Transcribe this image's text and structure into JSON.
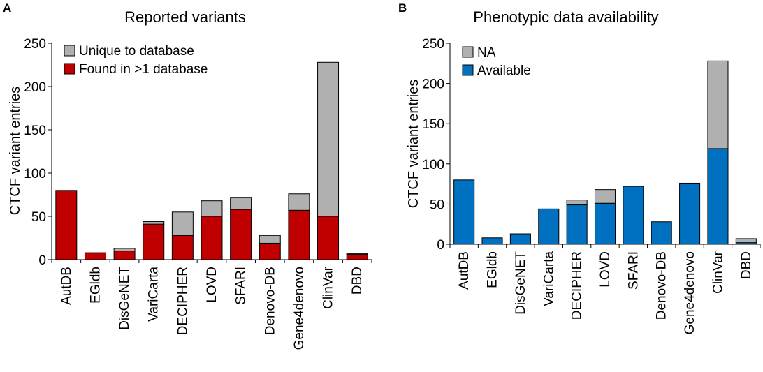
{
  "chart_data": [
    {
      "panel": "A",
      "type": "bar",
      "stacked": true,
      "title": "Reported variants",
      "xlabel": "",
      "ylabel": "CTCF variant entries",
      "ylim": [
        0,
        250
      ],
      "yticks": [
        0,
        50,
        100,
        150,
        200,
        250
      ],
      "categories": [
        "AutDB",
        "EGldb",
        "DisGeNET",
        "VariCarta",
        "DECIPHER",
        "LOVD",
        "SFARI",
        "Denovo-DB",
        "Gene4denovo",
        "ClinVar",
        "DBD"
      ],
      "legend_position": "top-left",
      "series": [
        {
          "name": "Found in >1 database",
          "color": "#c00000",
          "values": [
            80,
            8,
            10,
            41,
            28,
            50,
            58,
            19,
            57,
            50,
            6
          ]
        },
        {
          "name": "Unique to database",
          "color": "#b0b0b0",
          "values": [
            0,
            0,
            3,
            3,
            27,
            18,
            14,
            9,
            19,
            178,
            1
          ]
        }
      ],
      "legend_order": [
        "Unique to database",
        "Found in >1 database"
      ]
    },
    {
      "panel": "B",
      "type": "bar",
      "stacked": true,
      "title": "Phenotypic data availability",
      "xlabel": "",
      "ylabel": "CTCF variant entries",
      "ylim": [
        0,
        250
      ],
      "yticks": [
        0,
        50,
        100,
        150,
        200,
        250
      ],
      "categories": [
        "AutDB",
        "EGldb",
        "DisGeNET",
        "VariCarta",
        "DECIPHER",
        "LOVD",
        "SFARI",
        "Denovo-DB",
        "Gene4denovo",
        "ClinVar",
        "DBD"
      ],
      "legend_position": "top-left",
      "series": [
        {
          "name": "Available",
          "color": "#0070c0",
          "values": [
            80,
            8,
            13,
            44,
            49,
            51,
            72,
            28,
            76,
            119,
            2
          ]
        },
        {
          "name": "NA",
          "color": "#b0b0b0",
          "values": [
            0,
            0,
            0,
            0,
            6,
            17,
            0,
            0,
            0,
            109,
            5
          ]
        }
      ],
      "legend_order": [
        "NA",
        "Available"
      ]
    }
  ]
}
